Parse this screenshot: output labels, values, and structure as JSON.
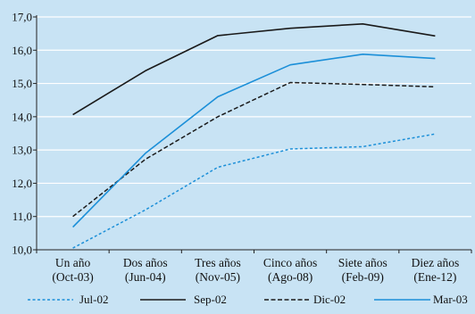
{
  "chart_data": {
    "type": "line",
    "title": "",
    "xlabel": "",
    "ylabel": "",
    "categories": [
      "Un año (Oct-03)",
      "Dos años (Jun-04)",
      "Tres años (Nov-05)",
      "Cinco años (Ago-08)",
      "Siete años (Feb-09)",
      "Diez años (Ene-12)"
    ],
    "category_lines": [
      [
        "Un año",
        "(Oct-03)"
      ],
      [
        "Dos años",
        "(Jun-04)"
      ],
      [
        "Tres años",
        "(Nov-05)"
      ],
      [
        "Cinco años",
        "(Ago-08)"
      ],
      [
        "Siete años",
        "(Feb-09)"
      ],
      [
        "Diez años",
        "(Ene-12)"
      ]
    ],
    "ylim": [
      10.0,
      17.0
    ],
    "yticks": [
      "10,0",
      "11,0",
      "12,0",
      "13,0",
      "14,0",
      "15,0",
      "16,0",
      "17,0"
    ],
    "grid": "horizontal",
    "legend_position": "bottom",
    "series": [
      {
        "name": "Jul-02",
        "values": [
          10.05,
          11.2,
          12.48,
          13.03,
          13.1,
          13.48
        ],
        "color": "#1b8fd8",
        "style": "dotted"
      },
      {
        "name": "Sep-02",
        "values": [
          14.06,
          15.38,
          16.44,
          16.66,
          16.79,
          16.43
        ],
        "color": "#1a1a1a",
        "style": "solid"
      },
      {
        "name": "Dic-02",
        "values": [
          11.0,
          12.72,
          14.0,
          15.03,
          14.97,
          14.9
        ],
        "color": "#1a1a1a",
        "style": "dashed"
      },
      {
        "name": "Mar-03",
        "values": [
          10.68,
          12.9,
          14.6,
          15.56,
          15.88,
          15.75
        ],
        "color": "#1b8fd8",
        "style": "solid"
      }
    ]
  }
}
